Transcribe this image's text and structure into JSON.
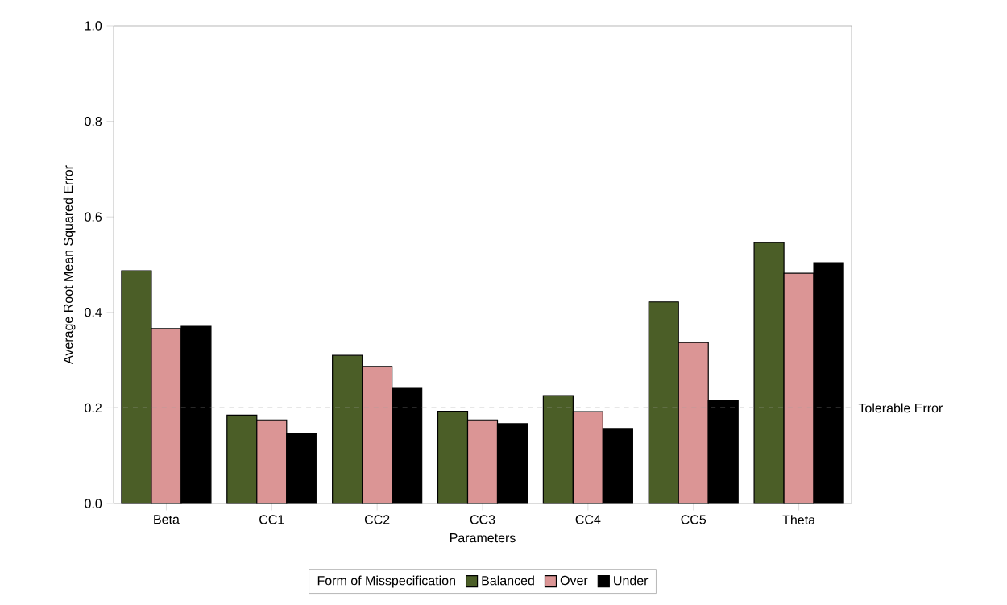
{
  "chart_data": {
    "type": "bar",
    "xlabel": "Parameters",
    "ylabel": "Average Root Mean Squared Error",
    "legend_title": "Form of Misspecification",
    "categories": [
      "Beta",
      "CC1",
      "CC2",
      "CC3",
      "CC4",
      "CC5",
      "Theta"
    ],
    "series": [
      {
        "name": "Balanced",
        "color": "#4b5e27",
        "values": [
          0.487,
          0.185,
          0.31,
          0.193,
          0.226,
          0.422,
          0.546
        ]
      },
      {
        "name": "Over",
        "color": "#db9595",
        "values": [
          0.366,
          0.175,
          0.287,
          0.175,
          0.192,
          0.337,
          0.482
        ]
      },
      {
        "name": "Under",
        "color": "#000000",
        "values": [
          0.371,
          0.147,
          0.241,
          0.167,
          0.157,
          0.216,
          0.504
        ]
      }
    ],
    "ylim": [
      0,
      1.0
    ],
    "yticks": [
      {
        "value": 0,
        "label": "0.0"
      },
      {
        "value": 0.2,
        "label": "0.2"
      },
      {
        "value": 0.4,
        "label": "0.4"
      },
      {
        "value": 0.6,
        "label": "0.6"
      },
      {
        "value": 0.8,
        "label": "0.8"
      },
      {
        "value": 1.0,
        "label": "1.0"
      }
    ],
    "ref_lines": [
      {
        "axis": "y",
        "value": 0.2,
        "label": "Tolerable Error",
        "color": "#a0a0a0",
        "line_style": "dashed"
      }
    ],
    "legend": "bottom",
    "grid": false
  }
}
